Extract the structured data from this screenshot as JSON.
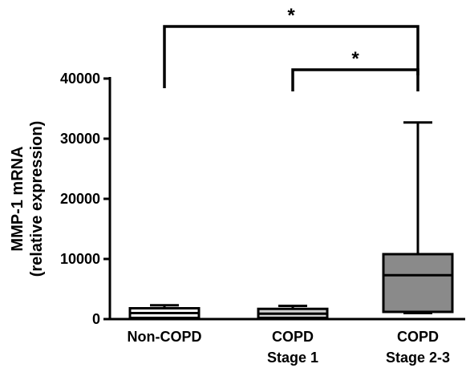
{
  "chart_data": {
    "type": "box",
    "title": "",
    "xlabel": "",
    "ylabel_line1": "MMP-1 mRNA",
    "ylabel_line2": "(relative expression)",
    "ylim": [
      0,
      40000
    ],
    "yticks": [
      0,
      10000,
      20000,
      30000,
      40000
    ],
    "ytick_labels": [
      "0",
      "10000",
      "20000",
      "30000",
      "40000"
    ],
    "categories": [
      {
        "line1": "Non-COPD",
        "line2": ""
      },
      {
        "line1": "COPD",
        "line2": "Stage 1"
      },
      {
        "line1": "COPD",
        "line2": "Stage 2-3"
      }
    ],
    "boxes": [
      {
        "min": 100,
        "q1": 200,
        "median": 1000,
        "q3": 1800,
        "max": 2300,
        "fill": "#ffffff"
      },
      {
        "min": 100,
        "q1": 200,
        "median": 900,
        "q3": 1700,
        "max": 2200,
        "fill": "#d4d4d4"
      },
      {
        "min": 1000,
        "q1": 1200,
        "median": 7300,
        "q3": 10800,
        "max": 32700,
        "fill": "#8a8a8a"
      }
    ],
    "significance": [
      {
        "from": 0,
        "to": 2,
        "label": "*"
      },
      {
        "from": 1,
        "to": 2,
        "label": "*"
      }
    ]
  }
}
